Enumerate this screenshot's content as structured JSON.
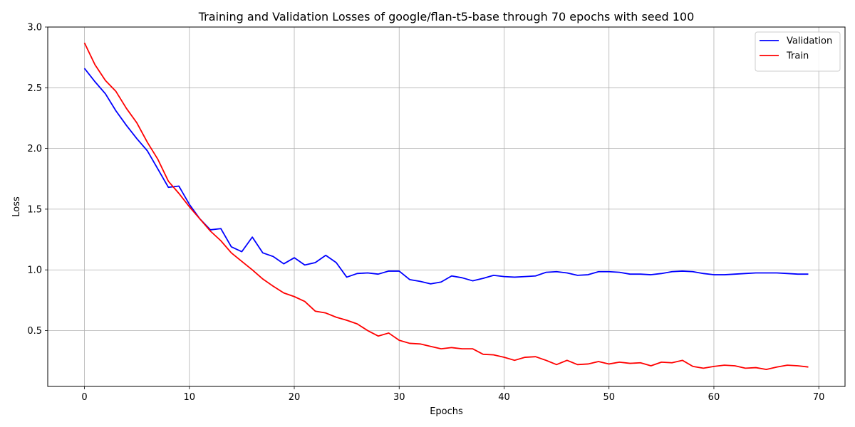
{
  "chart_data": {
    "type": "line",
    "title": "Training and Validation Losses of google/flan-t5-base through 70 epochs with seed 100",
    "xlabel": "Epochs",
    "ylabel": "Loss",
    "xlim": [
      -3.5,
      72.5
    ],
    "ylim": [
      0.04,
      3.0
    ],
    "xticks": [
      0,
      10,
      20,
      30,
      40,
      50,
      60,
      70
    ],
    "yticks": [
      0.5,
      1.0,
      1.5,
      2.0,
      2.5,
      3.0
    ],
    "xtick_labels": [
      "0",
      "10",
      "20",
      "30",
      "40",
      "50",
      "60",
      "70"
    ],
    "ytick_labels": [
      "0.5",
      "1.0",
      "1.5",
      "2.0",
      "2.5",
      "3.0"
    ],
    "grid": true,
    "legend_position": "top-right",
    "x": [
      0,
      1,
      2,
      3,
      4,
      5,
      6,
      7,
      8,
      9,
      10,
      11,
      12,
      13,
      14,
      15,
      16,
      17,
      18,
      19,
      20,
      21,
      22,
      23,
      24,
      25,
      26,
      27,
      28,
      29,
      30,
      31,
      32,
      33,
      34,
      35,
      36,
      37,
      38,
      39,
      40,
      41,
      42,
      43,
      44,
      45,
      46,
      47,
      48,
      49,
      50,
      51,
      52,
      53,
      54,
      55,
      56,
      57,
      58,
      59,
      60,
      61,
      62,
      63,
      64,
      65,
      66,
      67,
      68,
      69
    ],
    "series": [
      {
        "name": "Validation",
        "color": "#0000ff",
        "values": [
          2.66,
          2.55,
          2.45,
          2.31,
          2.19,
          2.08,
          1.98,
          1.83,
          1.68,
          1.69,
          1.54,
          1.42,
          1.33,
          1.34,
          1.19,
          1.15,
          1.27,
          1.14,
          1.11,
          1.05,
          1.1,
          1.04,
          1.06,
          1.12,
          1.06,
          0.94,
          0.97,
          0.975,
          0.965,
          0.99,
          0.99,
          0.92,
          0.905,
          0.885,
          0.9,
          0.95,
          0.935,
          0.91,
          0.93,
          0.955,
          0.945,
          0.94,
          0.945,
          0.95,
          0.98,
          0.985,
          0.975,
          0.955,
          0.96,
          0.985,
          0.985,
          0.98,
          0.965,
          0.965,
          0.96,
          0.97,
          0.985,
          0.99,
          0.985,
          0.97,
          0.96,
          0.96,
          0.965,
          0.97,
          0.975,
          0.975,
          0.975,
          0.97,
          0.965,
          0.965
        ]
      },
      {
        "name": "Train",
        "color": "#ff0000",
        "values": [
          2.87,
          2.69,
          2.56,
          2.47,
          2.33,
          2.21,
          2.05,
          1.91,
          1.73,
          1.63,
          1.52,
          1.42,
          1.32,
          1.24,
          1.14,
          1.07,
          1.0,
          0.925,
          0.865,
          0.81,
          0.78,
          0.74,
          0.66,
          0.645,
          0.61,
          0.585,
          0.555,
          0.5,
          0.455,
          0.48,
          0.42,
          0.395,
          0.39,
          0.37,
          0.35,
          0.36,
          0.35,
          0.35,
          0.305,
          0.3,
          0.28,
          0.255,
          0.28,
          0.285,
          0.255,
          0.22,
          0.255,
          0.22,
          0.225,
          0.245,
          0.225,
          0.24,
          0.23,
          0.235,
          0.21,
          0.24,
          0.235,
          0.255,
          0.205,
          0.19,
          0.205,
          0.215,
          0.21,
          0.19,
          0.195,
          0.18,
          0.2,
          0.215,
          0.21,
          0.2
        ]
      }
    ]
  }
}
